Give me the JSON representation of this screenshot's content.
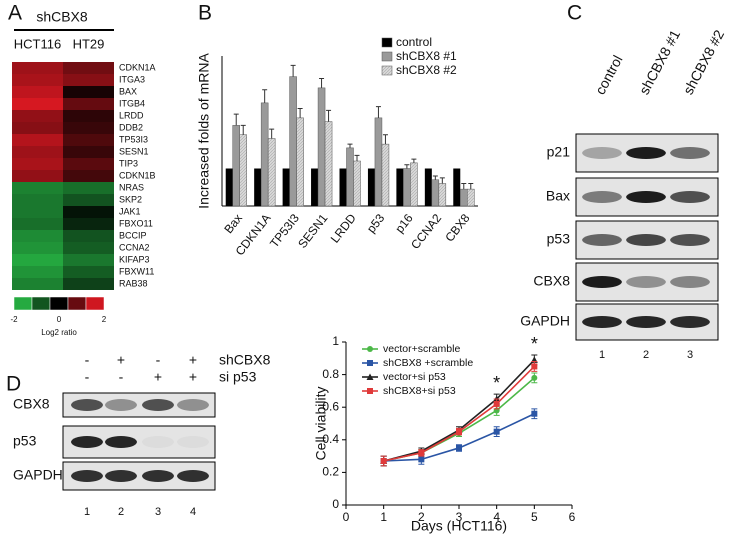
{
  "panel_labels": [
    "A",
    "B",
    "C",
    "D"
  ],
  "heatmap": {
    "header": "shCBX8",
    "columns": [
      "HCT116",
      "HT29"
    ],
    "rows": [
      "CDKN1A",
      "ITGA3",
      "BAX",
      "ITGB4",
      "LRDD",
      "DDB2",
      "TP53I3",
      "SESN1",
      "TIP3",
      "CDKN1B",
      "NRAS",
      "SKP2",
      "JAK1",
      "FBXO11",
      "BCCIP",
      "CCNA2",
      "KIFAP3",
      "FBXW11",
      "RAB38"
    ],
    "values": [
      [
        1.4,
        1.0
      ],
      [
        1.5,
        1.2
      ],
      [
        1.7,
        0.2
      ],
      [
        1.9,
        0.9
      ],
      [
        1.3,
        0.4
      ],
      [
        1.2,
        0.5
      ],
      [
        1.6,
        0.7
      ],
      [
        1.4,
        0.5
      ],
      [
        1.5,
        0.8
      ],
      [
        1.3,
        0.6
      ],
      [
        -1.4,
        -1.2
      ],
      [
        -1.3,
        -0.9
      ],
      [
        -1.3,
        -0.2
      ],
      [
        -1.2,
        -0.4
      ],
      [
        -1.5,
        -0.9
      ],
      [
        -1.6,
        -1.0
      ],
      [
        -1.8,
        -1.3
      ],
      [
        -1.6,
        -1.0
      ],
      [
        -1.4,
        -0.7
      ]
    ],
    "scale_ticks": [
      -2,
      0,
      2
    ],
    "scale_label": "Log2 ratio"
  },
  "chart_data": [
    {
      "type": "bar",
      "ylabel": "Increased folds of mRNA",
      "categories": [
        "Bax",
        "CDKN1A",
        "TP53I3",
        "SESN1",
        "LRDD",
        "p53",
        "p16",
        "CCNA2",
        "CBX8"
      ],
      "ylim": [
        0,
        4
      ],
      "series": [
        {
          "name": "control",
          "color": "#000000",
          "values": [
            1,
            1,
            1,
            1,
            1,
            1,
            1,
            1,
            1
          ]
        },
        {
          "name": "shCBX8 #1",
          "color": "#9a9a9a",
          "values": [
            2.15,
            2.75,
            3.45,
            3.15,
            1.55,
            2.35,
            1.0,
            0.7,
            0.45
          ],
          "errors": [
            0.3,
            0.35,
            0.3,
            0.25,
            0.1,
            0.3,
            0.1,
            0.1,
            0.15
          ]
        },
        {
          "name": "shCBX8 #2",
          "color": "#d9d9d9",
          "values": [
            1.9,
            1.8,
            2.35,
            2.25,
            1.2,
            1.65,
            1.15,
            0.6,
            0.45
          ],
          "errors": [
            0.25,
            0.25,
            0.25,
            0.3,
            0.15,
            0.25,
            0.1,
            0.15,
            0.15
          ]
        }
      ]
    },
    {
      "type": "line",
      "xlabel": "Days  (HCT116)",
      "ylabel": "Cell viability",
      "x": [
        1,
        2,
        3,
        4,
        5
      ],
      "xlim": [
        0,
        6
      ],
      "xticks": [
        0,
        1,
        2,
        3,
        4,
        5,
        6
      ],
      "ylim": [
        0,
        1
      ],
      "yticks": [
        0,
        0.2,
        0.4,
        0.6,
        0.8,
        1
      ],
      "series": [
        {
          "name": "vector+scramble",
          "color": "#4cb848",
          "marker": "circle",
          "values": [
            0.27,
            0.32,
            0.44,
            0.58,
            0.78
          ],
          "errors": [
            0.03,
            0.02,
            0.02,
            0.03,
            0.03
          ]
        },
        {
          "name": "shCBX8 +scramble",
          "color": "#2a55a5",
          "marker": "square",
          "values": [
            0.27,
            0.28,
            0.35,
            0.45,
            0.56
          ],
          "errors": [
            0.03,
            0.03,
            0.02,
            0.03,
            0.03
          ]
        },
        {
          "name": "vector+si p53",
          "color": "#222222",
          "marker": "triangle",
          "values": [
            0.27,
            0.33,
            0.46,
            0.65,
            0.89
          ],
          "errors": [
            0.03,
            0.02,
            0.02,
            0.03,
            0.03
          ]
        },
        {
          "name": "shCBX8+si p53",
          "color": "#e03a3a",
          "marker": "square",
          "values": [
            0.27,
            0.32,
            0.45,
            0.62,
            0.85
          ],
          "errors": [
            0.03,
            0.02,
            0.02,
            0.03,
            0.03
          ]
        }
      ],
      "annotations": [
        {
          "text": "*",
          "x": 4
        },
        {
          "text": "*",
          "x": 5
        }
      ]
    }
  ],
  "blot_c": {
    "lanes": [
      "control",
      "shCBX8 #1",
      "shCBX8 #2"
    ],
    "proteins": [
      "p21",
      "Bax",
      "p53",
      "CBX8",
      "GAPDH"
    ],
    "lane_numbers": [
      "1",
      "2",
      "3"
    ]
  },
  "blot_d": {
    "conditions": [
      {
        "label": "shCBX8",
        "signs": [
          "-",
          "+",
          "-",
          "+"
        ]
      },
      {
        "label": "si p53",
        "signs": [
          "-",
          "-",
          "+",
          "+"
        ]
      }
    ],
    "proteins": [
      "CBX8",
      "p53",
      "GAPDH"
    ],
    "lane_numbers": [
      "1",
      "2",
      "3",
      "4"
    ]
  }
}
